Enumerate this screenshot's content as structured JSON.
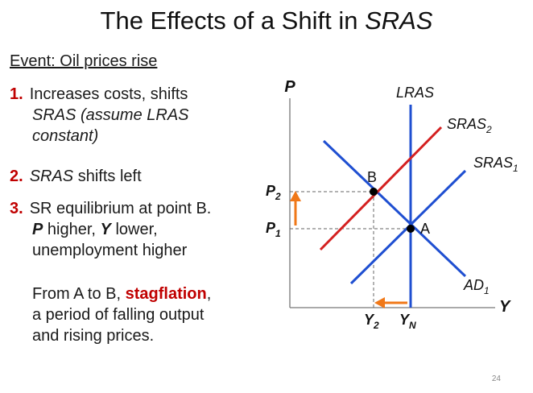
{
  "title": {
    "text": "The Effects of a Shift in ",
    "italic": "SRAS"
  },
  "event": "Event:  Oil prices rise",
  "points": [
    {
      "num": "1.",
      "lines": [
        "Increases costs, shifts",
        "SRAS (assume LRAS",
        "constant)"
      ]
    },
    {
      "num": "2.",
      "italic": "SRAS",
      "rest": " shifts left"
    },
    {
      "num": "3.",
      "lines": [
        "SR equilibrium at point B.",
        "higher,",
        "lower,",
        "unemployment higher"
      ],
      "p": "P",
      "y": "Y"
    }
  ],
  "paragraph": {
    "pre": "From A to B, ",
    "highlight": "stagflation",
    "post": ",",
    "line2": "a period of falling output",
    "line3": "and rising prices."
  },
  "diagram": {
    "y_axis_label": "P",
    "x_axis_label": "Y",
    "curves": {
      "lras": "LRAS",
      "sras2": "SRAS",
      "sras2_sub": "2",
      "sras1": "SRAS",
      "sras1_sub": "1",
      "ad": "AD",
      "ad_sub": "1"
    },
    "points": {
      "b": "B",
      "a": "A"
    },
    "price_labels": {
      "p2": "P",
      "p2_sub": "2",
      "p1": "P",
      "p1_sub": "1"
    },
    "quantity_labels": {
      "y2": "Y",
      "y2_sub": "2",
      "yn": "Y",
      "yn_sub": "N"
    },
    "colors": {
      "lras": "#1f4fd1",
      "sras1": "#1f4fd1",
      "ad": "#1f4fd1",
      "sras2": "#d42020",
      "arrow": "#f07818"
    }
  },
  "slide_number": "24"
}
